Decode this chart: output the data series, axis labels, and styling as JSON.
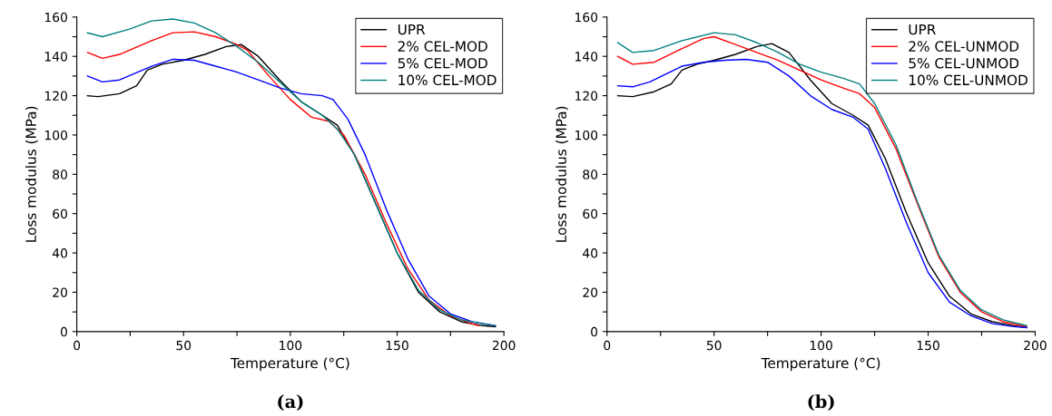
{
  "chart_data": [
    {
      "type": "line",
      "xlabel": "Temperature (°C)",
      "ylabel": "Loss modulus (MPa)",
      "annotations": [
        "(a)"
      ],
      "legend": "top right",
      "grid": false,
      "xlim": [
        0,
        200
      ],
      "ylim": [
        0,
        160
      ],
      "xticks": [
        0,
        {
          "value": 25,
          "label": null
        },
        50,
        {
          "value": 75,
          "label": null
        },
        100,
        {
          "value": 125,
          "label": null
        },
        150,
        {
          "value": 175,
          "label": null
        },
        200
      ],
      "yticks": [
        0,
        {
          "value": 10,
          "label": null
        },
        20,
        {
          "value": 30,
          "label": null
        },
        40,
        {
          "value": 50,
          "label": null
        },
        60,
        {
          "value": 70,
          "label": null
        },
        80,
        {
          "value": 90,
          "label": null
        },
        100,
        {
          "value": 110,
          "label": null
        },
        120,
        {
          "value": 130,
          "label": null
        },
        140,
        {
          "value": 150,
          "label": null
        },
        160
      ],
      "series": [
        {
          "name": "UPR",
          "color": "#000000",
          "x": [
            5,
            10,
            20,
            28,
            33,
            40,
            50,
            60,
            70,
            77,
            85,
            95,
            105,
            115,
            122,
            130,
            140,
            150,
            160,
            170,
            180,
            190,
            196
          ],
          "values": [
            120,
            119.5,
            121,
            125,
            133,
            136,
            138,
            141,
            145,
            146,
            140,
            128,
            117,
            110,
            105,
            90,
            65,
            40,
            20,
            10,
            5,
            3,
            2.5
          ]
        },
        {
          "name": "2% CEL-MOD",
          "color": "#ff0000",
          "x": [
            5,
            12,
            20,
            35,
            45,
            55,
            65,
            75,
            80,
            90,
            100,
            110,
            118,
            125,
            135,
            145,
            155,
            165,
            175,
            185,
            188
          ],
          "values": [
            142,
            139,
            141,
            148,
            152,
            152.5,
            150,
            146,
            143,
            130,
            118,
            109,
            107,
            100,
            80,
            55,
            32,
            16,
            8,
            4,
            3
          ]
        },
        {
          "name": "5% CEL-MOD",
          "color": "#0000ff",
          "x": [
            5,
            12,
            20,
            35,
            45,
            55,
            65,
            75,
            85,
            95,
            105,
            115,
            120,
            127,
            135,
            145,
            155,
            165,
            175,
            185,
            196
          ],
          "values": [
            130,
            127,
            128,
            135,
            138.5,
            138,
            135,
            132,
            128,
            124,
            121,
            120,
            118,
            108,
            90,
            62,
            37,
            18,
            9,
            5,
            3
          ]
        },
        {
          "name": "10% CEL-MOD",
          "color": "#008080",
          "x": [
            5,
            12,
            25,
            35,
            45,
            55,
            65,
            75,
            85,
            95,
            105,
            115,
            122,
            130,
            140,
            150,
            160,
            170,
            180,
            190,
            196
          ],
          "values": [
            152,
            150,
            154,
            158,
            159,
            157,
            152,
            145,
            137,
            127,
            117,
            110,
            103,
            90,
            65,
            40,
            21,
            11,
            6,
            4,
            3
          ]
        }
      ]
    },
    {
      "type": "line",
      "xlabel": "Temperature (°C)",
      "ylabel": "Loss modulus (MPa)",
      "annotations": [
        "(b)"
      ],
      "legend": "top right",
      "grid": false,
      "xlim": [
        0,
        200
      ],
      "ylim": [
        0,
        160
      ],
      "xticks": [
        0,
        {
          "value": 25,
          "label": null
        },
        50,
        {
          "value": 75,
          "label": null
        },
        100,
        {
          "value": 125,
          "label": null
        },
        150,
        {
          "value": 175,
          "label": null
        },
        200
      ],
      "yticks": [
        0,
        {
          "value": 10,
          "label": null
        },
        20,
        {
          "value": 30,
          "label": null
        },
        40,
        {
          "value": 50,
          "label": null
        },
        60,
        {
          "value": 70,
          "label": null
        },
        80,
        {
          "value": 90,
          "label": null
        },
        100,
        {
          "value": 110,
          "label": null
        },
        120,
        {
          "value": 130,
          "label": null
        },
        140,
        {
          "value": 150,
          "label": null
        },
        160
      ],
      "series": [
        {
          "name": "UPR",
          "color": "#000000",
          "x": [
            5,
            12,
            22,
            30,
            35,
            42,
            50,
            60,
            70,
            77,
            85,
            95,
            105,
            115,
            122,
            130,
            140,
            150,
            160,
            170,
            180,
            190,
            196
          ],
          "values": [
            120,
            119.5,
            122,
            126,
            133,
            136,
            138,
            141,
            145,
            146.5,
            142,
            128,
            116,
            110,
            105,
            88,
            60,
            35,
            18,
            9,
            5,
            3,
            2
          ]
        },
        {
          "name": "2% CEL-UNMOD",
          "color": "#ff0000",
          "x": [
            5,
            12,
            22,
            35,
            45,
            50,
            60,
            70,
            80,
            90,
            100,
            110,
            118,
            125,
            135,
            145,
            155,
            165,
            175,
            185,
            196
          ],
          "values": [
            140,
            136,
            137,
            144,
            149,
            150,
            146,
            142,
            138,
            133,
            128,
            124,
            121,
            114,
            93,
            65,
            38,
            20,
            10,
            5,
            2.5
          ]
        },
        {
          "name": "5% CEL-UNMOD",
          "color": "#0000ff",
          "x": [
            5,
            12,
            20,
            35,
            45,
            55,
            65,
            75,
            85,
            95,
            105,
            115,
            122,
            130,
            140,
            150,
            160,
            170,
            180,
            190,
            196
          ],
          "values": [
            125,
            124.5,
            127,
            135,
            137,
            138,
            138.5,
            137,
            130,
            120,
            113,
            109,
            103,
            83,
            55,
            30,
            15,
            8,
            4,
            2.5,
            2
          ]
        },
        {
          "name": "10% CEL-UNMOD",
          "color": "#008080",
          "x": [
            5,
            12,
            22,
            35,
            50,
            60,
            70,
            80,
            90,
            100,
            110,
            118,
            125,
            135,
            145,
            155,
            165,
            175,
            185,
            196
          ],
          "values": [
            147,
            142,
            143,
            148,
            152,
            151,
            147,
            142,
            136,
            132,
            129,
            126,
            116,
            95,
            66,
            39,
            21,
            11,
            6,
            3
          ]
        }
      ]
    }
  ]
}
